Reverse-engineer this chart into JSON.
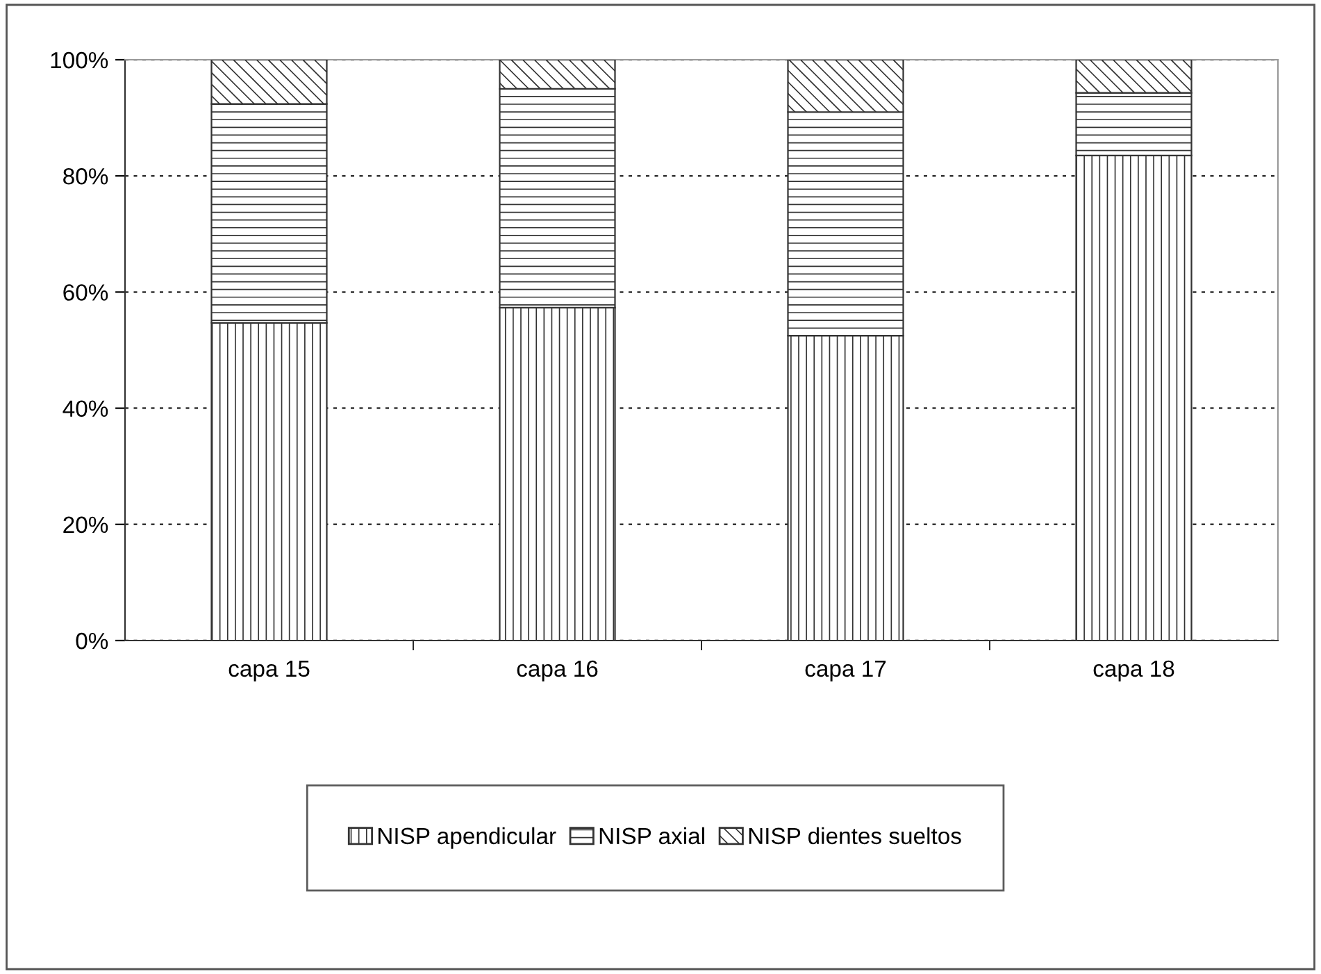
{
  "chart_data": {
    "type": "bar",
    "stacked": true,
    "categories": [
      "capa 15",
      "capa 16",
      "capa 17",
      "capa 18"
    ],
    "series": [
      {
        "name": "NISP apendicular",
        "color": "#333333",
        "values": [
          54.7,
          57.3,
          52.5,
          83.5
        ]
      },
      {
        "name": "NISP axial",
        "color": "#333333",
        "values": [
          37.7,
          37.7,
          38.5,
          10.8
        ]
      },
      {
        "name": "NISP dientes sueltos",
        "color": "#333333",
        "values": [
          7.6,
          5.0,
          9.0,
          5.7
        ]
      }
    ],
    "ylim": [
      0,
      100
    ],
    "yticks": [
      {
        "value": 0,
        "label": "0%"
      },
      {
        "value": 20,
        "label": "20%"
      },
      {
        "value": 40,
        "label": "40%"
      },
      {
        "value": 60,
        "label": "60%"
      },
      {
        "value": 80,
        "label": "80%"
      },
      {
        "value": 100,
        "label": "100%"
      }
    ],
    "grid": "y",
    "legend": "bottom"
  }
}
